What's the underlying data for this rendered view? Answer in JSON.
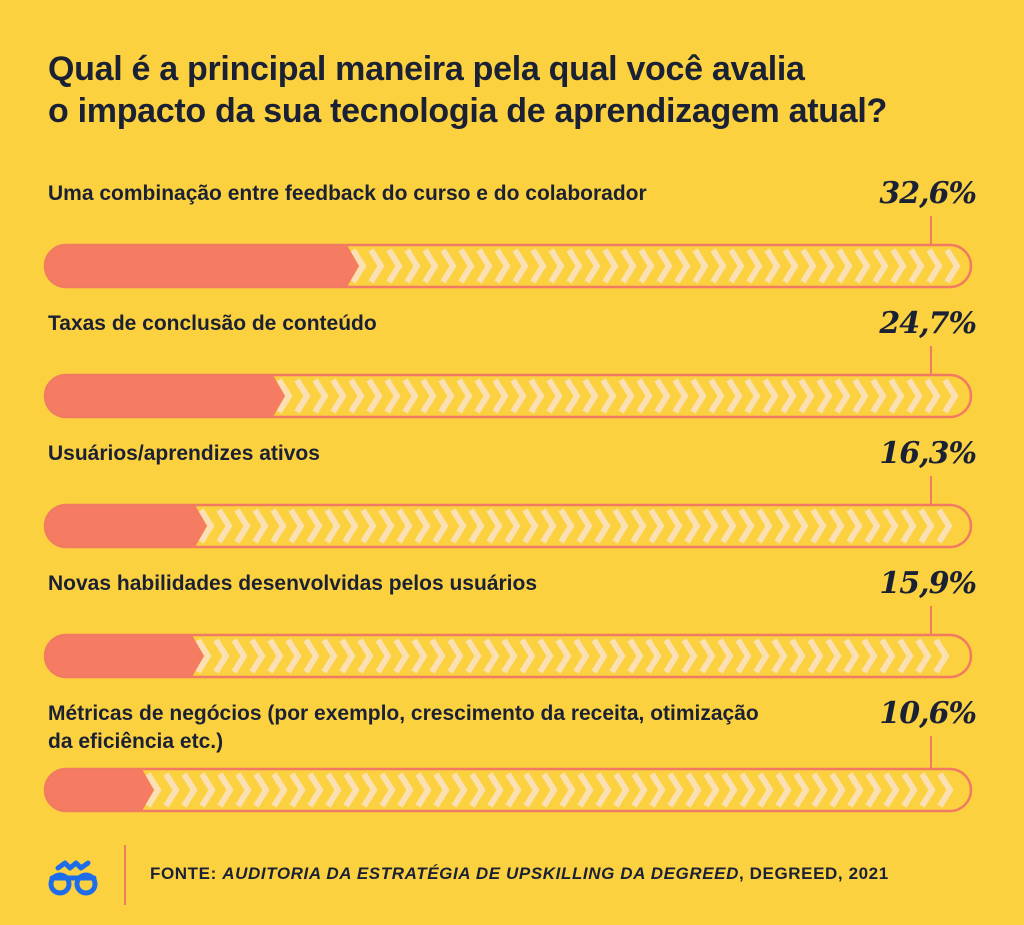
{
  "title": {
    "line1": "Qual é a principal maneira pela qual você avalia",
    "line2": "o impacto da sua tecnologia de aprendizagem atual?"
  },
  "chart_data": {
    "type": "bar",
    "title": "Qual é a principal maneira pela qual você avalia o impacto da sua tecnologia de aprendizagem atual?",
    "categories": [
      "Uma combinação entre feedback do curso e do colaborador",
      "Taxas de conclusão de conteúdo",
      "Usuários/aprendizes ativos",
      "Novas habilidades desenvolvidas pelos usuários",
      "Métricas de negócios (por exemplo, crescimento da receita, otimização da eficiência etc.)"
    ],
    "values": [
      32.6,
      24.7,
      16.3,
      15.9,
      10.6
    ],
    "value_labels": [
      "32,6%",
      "24,7%",
      "16,3%",
      "15,9%",
      "10,6%"
    ],
    "xlim": [
      0,
      100
    ],
    "unit": "%"
  },
  "rows": [
    {
      "label_lines": [
        "Uma combinação entre feedback do curso e do colaborador"
      ],
      "value_label": "32,6%"
    },
    {
      "label_lines": [
        "Taxas de conclusão de conteúdo"
      ],
      "value_label": "24,7%"
    },
    {
      "label_lines": [
        "Usuários/aprendizes ativos"
      ],
      "value_label": "16,3%"
    },
    {
      "label_lines": [
        "Novas habilidades desenvolvidas pelos usuários"
      ],
      "value_label": "15,9%"
    },
    {
      "label_lines": [
        "Métricas de negócios (por exemplo, crescimento da receita, otimização",
        "da eficiência etc.)"
      ],
      "value_label": "10,6%"
    }
  ],
  "source": {
    "prefix": "FONTE: ",
    "italic": "AUDITORIA DA ESTRATÉGIA DE UPSKILLING DA DEGREED",
    "suffix": ", DEGREED, 2021"
  },
  "logo_icon": "glasses-icon",
  "colors": {
    "background": "#FCD13F",
    "bar_fill": "#F57C63",
    "bar_outline": "#F07A62",
    "text": "#1B2135",
    "logo": "#1D6DEB"
  }
}
